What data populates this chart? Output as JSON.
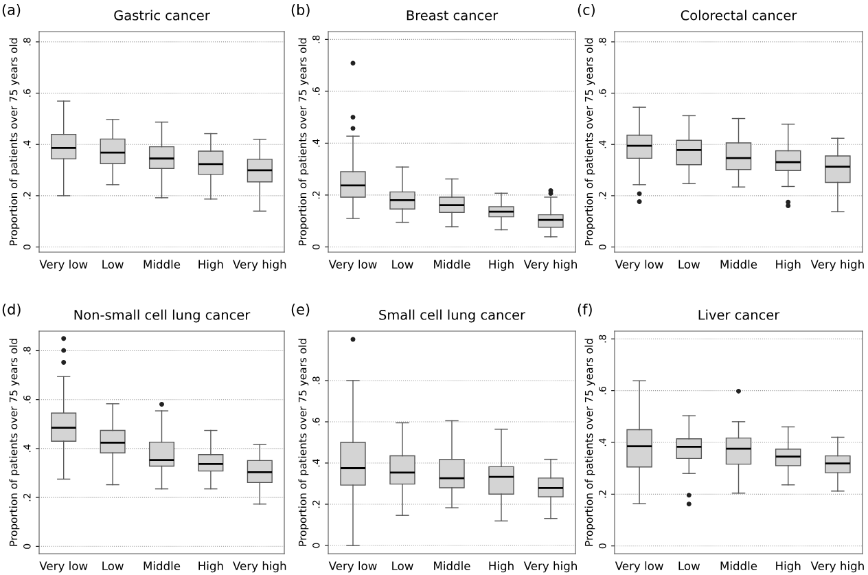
{
  "chart_data": [
    {
      "type": "box",
      "title": "Gastric cancer",
      "annotations": [
        "(a)"
      ],
      "ylabel": "Proportion of patients over 75 years old",
      "categories": [
        "Very low",
        "Low",
        "Middle",
        "High",
        "Very high"
      ],
      "color": "#d4d4d4",
      "grid": "y",
      "ylim": [
        -0.02,
        0.84
      ],
      "yticks": [
        0,
        {
          "value": 0.2,
          "label": ".2"
        },
        {
          "value": 0.4,
          "label": ".4"
        },
        {
          "value": 0.6,
          "label": ".6"
        },
        {
          "value": 0.8,
          "label": ".8"
        }
      ],
      "boxes": [
        {
          "low": 0.2,
          "q1": 0.344,
          "median": 0.386,
          "q3": 0.439,
          "high": 0.569
        },
        {
          "low": 0.243,
          "q1": 0.325,
          "median": 0.368,
          "q3": 0.421,
          "high": 0.497
        },
        {
          "low": 0.192,
          "q1": 0.306,
          "median": 0.345,
          "q3": 0.391,
          "high": 0.487
        },
        {
          "low": 0.187,
          "q1": 0.283,
          "median": 0.323,
          "q3": 0.374,
          "high": 0.442
        },
        {
          "low": 0.14,
          "q1": 0.254,
          "median": 0.299,
          "q3": 0.342,
          "high": 0.42
        }
      ]
    },
    {
      "type": "box",
      "title": "Breast cancer",
      "annotations": [
        "(b)"
      ],
      "ylabel": "Proportion of patients over 75 years old",
      "categories": [
        "Very low",
        "Low",
        "Middle",
        "High",
        "Very high"
      ],
      "color": "#d4d4d4",
      "grid": "y",
      "ylim": [
        -0.02,
        0.83
      ],
      "yticks": [
        0,
        {
          "value": 0.2,
          "label": ".2"
        },
        {
          "value": 0.4,
          "label": ".4"
        },
        {
          "value": 0.6,
          "label": ".6"
        },
        {
          "value": 0.8,
          "label": ".8"
        }
      ],
      "boxes": [
        {
          "low": 0.11,
          "q1": 0.192,
          "median": 0.237,
          "q3": 0.29,
          "high": 0.427,
          "outliers": [
            0.457,
            0.5,
            0.708
          ]
        },
        {
          "low": 0.095,
          "q1": 0.146,
          "median": 0.18,
          "q3": 0.212,
          "high": 0.308
        },
        {
          "low": 0.078,
          "q1": 0.133,
          "median": 0.161,
          "q3": 0.192,
          "high": 0.262
        },
        {
          "low": 0.066,
          "q1": 0.116,
          "median": 0.136,
          "q3": 0.155,
          "high": 0.207
        },
        {
          "low": 0.039,
          "q1": 0.076,
          "median": 0.104,
          "q3": 0.124,
          "high": 0.192,
          "outliers": [
            0.206,
            0.217
          ]
        }
      ]
    },
    {
      "type": "box",
      "title": "Colorectal cancer",
      "annotations": [
        "(c)"
      ],
      "ylabel": "Proportion of patients over 75 years old",
      "categories": [
        "Very low",
        "Low",
        "Middle",
        "High",
        "Very high"
      ],
      "color": "#d4d4d4",
      "grid": "y",
      "ylim": [
        -0.02,
        0.84
      ],
      "yticks": [
        0,
        {
          "value": 0.2,
          "label": ".2"
        },
        {
          "value": 0.4,
          "label": ".4"
        },
        {
          "value": 0.6,
          "label": ".6"
        },
        {
          "value": 0.8,
          "label": ".8"
        }
      ],
      "boxes": [
        {
          "low": 0.243,
          "q1": 0.346,
          "median": 0.395,
          "q3": 0.436,
          "high": 0.545,
          "outliers": [
            0.177,
            0.208
          ]
        },
        {
          "low": 0.247,
          "q1": 0.321,
          "median": 0.378,
          "q3": 0.416,
          "high": 0.512
        },
        {
          "low": 0.234,
          "q1": 0.302,
          "median": 0.347,
          "q3": 0.406,
          "high": 0.501
        },
        {
          "low": 0.236,
          "q1": 0.298,
          "median": 0.331,
          "q3": 0.375,
          "high": 0.479,
          "outliers": [
            0.161,
            0.175
          ]
        },
        {
          "low": 0.138,
          "q1": 0.252,
          "median": 0.313,
          "q3": 0.355,
          "high": 0.424
        }
      ]
    },
    {
      "type": "box",
      "title": "Non-small cell lung cancer",
      "annotations": [
        "(d)"
      ],
      "ylabel": "Proportion of patients over 75 years old",
      "categories": [
        "Very low",
        "Low",
        "Middle",
        "High",
        "Very high"
      ],
      "color": "#d4d4d4",
      "grid": "y",
      "ylim": [
        -0.03,
        0.88
      ],
      "yticks": [
        0,
        {
          "value": 0.2,
          "label": ".2"
        },
        {
          "value": 0.4,
          "label": ".4"
        },
        {
          "value": 0.6,
          "label": ".6"
        },
        {
          "value": 0.8,
          "label": ".8"
        }
      ],
      "boxes": [
        {
          "low": 0.275,
          "q1": 0.43,
          "median": 0.485,
          "q3": 0.545,
          "high": 0.694,
          "outliers": [
            0.752,
            0.801,
            0.85
          ]
        },
        {
          "low": 0.252,
          "q1": 0.382,
          "median": 0.424,
          "q3": 0.474,
          "high": 0.583
        },
        {
          "low": 0.235,
          "q1": 0.328,
          "median": 0.353,
          "q3": 0.426,
          "high": 0.554,
          "outliers": [
            0.581
          ]
        },
        {
          "low": 0.235,
          "q1": 0.308,
          "median": 0.337,
          "q3": 0.375,
          "high": 0.474
        },
        {
          "low": 0.173,
          "q1": 0.261,
          "median": 0.303,
          "q3": 0.351,
          "high": 0.416
        }
      ]
    },
    {
      "type": "box",
      "title": "Small cell lung cancer",
      "annotations": [
        "(e)"
      ],
      "ylabel": "Proportion of patients over 75 years old",
      "categories": [
        "Very low",
        "Low",
        "Middle",
        "High",
        "Very high"
      ],
      "color": "#d4d4d4",
      "grid": "y",
      "ylim": [
        -0.04,
        1.04
      ],
      "yticks": [
        0,
        {
          "value": 0.2,
          "label": ".2"
        },
        {
          "value": 0.4,
          "label": ".4"
        },
        {
          "value": 0.6,
          "label": ".6"
        },
        {
          "value": 0.8,
          "label": ".8"
        }
      ],
      "boxes": [
        {
          "low": 0,
          "q1": 0.293,
          "median": 0.375,
          "q3": 0.5,
          "high": 0.8,
          "outliers": [
            1.0
          ]
        },
        {
          "low": 0.146,
          "q1": 0.298,
          "median": 0.354,
          "q3": 0.435,
          "high": 0.595
        },
        {
          "low": 0.183,
          "q1": 0.28,
          "median": 0.326,
          "q3": 0.418,
          "high": 0.605
        },
        {
          "low": 0.119,
          "q1": 0.249,
          "median": 0.333,
          "q3": 0.382,
          "high": 0.564
        },
        {
          "low": 0.131,
          "q1": 0.236,
          "median": 0.279,
          "q3": 0.327,
          "high": 0.418
        }
      ]
    },
    {
      "type": "box",
      "title": "Liver cancer",
      "annotations": [
        "(f)"
      ],
      "ylabel": "Proportion of patients over 75 years old",
      "categories": [
        "Very low",
        "Low",
        "Middle",
        "High",
        "Very high"
      ],
      "color": "#d4d4d4",
      "grid": "y",
      "ylim": [
        -0.03,
        0.83
      ],
      "yticks": [
        0,
        {
          "value": 0.2,
          "label": ".2"
        },
        {
          "value": 0.4,
          "label": ".4"
        },
        {
          "value": 0.6,
          "label": ".6"
        },
        {
          "value": 0.8,
          "label": ".8"
        }
      ],
      "boxes": [
        {
          "low": 0.163,
          "q1": 0.305,
          "median": 0.385,
          "q3": 0.449,
          "high": 0.638
        },
        {
          "low": 0.28,
          "q1": 0.338,
          "median": 0.383,
          "q3": 0.414,
          "high": 0.503,
          "outliers": [
            0.162,
            0.196
          ]
        },
        {
          "low": 0.204,
          "q1": 0.316,
          "median": 0.376,
          "q3": 0.417,
          "high": 0.48,
          "outliers": [
            0.598
          ]
        },
        {
          "low": 0.236,
          "q1": 0.31,
          "median": 0.345,
          "q3": 0.374,
          "high": 0.46
        },
        {
          "low": 0.212,
          "q1": 0.283,
          "median": 0.319,
          "q3": 0.348,
          "high": 0.42
        }
      ]
    }
  ]
}
